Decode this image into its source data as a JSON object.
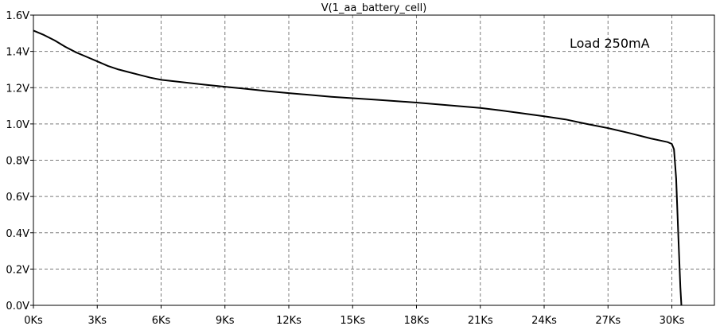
{
  "chart_data": {
    "type": "line",
    "title": "V(1_aa_battery_cell)",
    "annotation": "Load 250mA",
    "xlim": [
      0,
      32000
    ],
    "ylim": [
      0,
      1.6
    ],
    "grid": true,
    "x_ticks": [
      0,
      3000,
      6000,
      9000,
      12000,
      15000,
      18000,
      21000,
      24000,
      27000,
      30000
    ],
    "x_tick_labels": [
      "0Ks",
      "3Ks",
      "6Ks",
      "9Ks",
      "12Ks",
      "15Ks",
      "18Ks",
      "21Ks",
      "24Ks",
      "27Ks",
      "30Ks"
    ],
    "y_ticks": [
      0,
      0.2,
      0.4,
      0.6,
      0.8,
      1.0,
      1.2,
      1.4,
      1.6
    ],
    "y_tick_labels": [
      "0.0V",
      "0.2V",
      "0.4V",
      "0.6V",
      "0.8V",
      "1.0V",
      "1.2V",
      "1.4V",
      "1.6V"
    ],
    "series": [
      {
        "color": "#000000",
        "x": [
          0,
          500,
          1000,
          1500,
          2000,
          2500,
          3000,
          3500,
          4000,
          4500,
          5000,
          5500,
          6000,
          7000,
          8000,
          9000,
          10000,
          11000,
          12000,
          13000,
          14000,
          15000,
          16000,
          17000,
          18000,
          19000,
          20000,
          21000,
          22000,
          23000,
          24000,
          25000,
          26000,
          27000,
          28000,
          29000,
          29800,
          30000,
          30100,
          30200,
          30300,
          30400,
          30450
        ],
        "y": [
          1.515,
          1.49,
          1.46,
          1.425,
          1.395,
          1.37,
          1.345,
          1.32,
          1.3,
          1.285,
          1.27,
          1.255,
          1.243,
          1.23,
          1.217,
          1.205,
          1.193,
          1.181,
          1.17,
          1.16,
          1.15,
          1.142,
          1.134,
          1.126,
          1.118,
          1.108,
          1.098,
          1.088,
          1.074,
          1.058,
          1.042,
          1.025,
          1.0,
          0.977,
          0.95,
          0.92,
          0.9,
          0.89,
          0.86,
          0.7,
          0.4,
          0.1,
          0.0
        ]
      }
    ]
  }
}
